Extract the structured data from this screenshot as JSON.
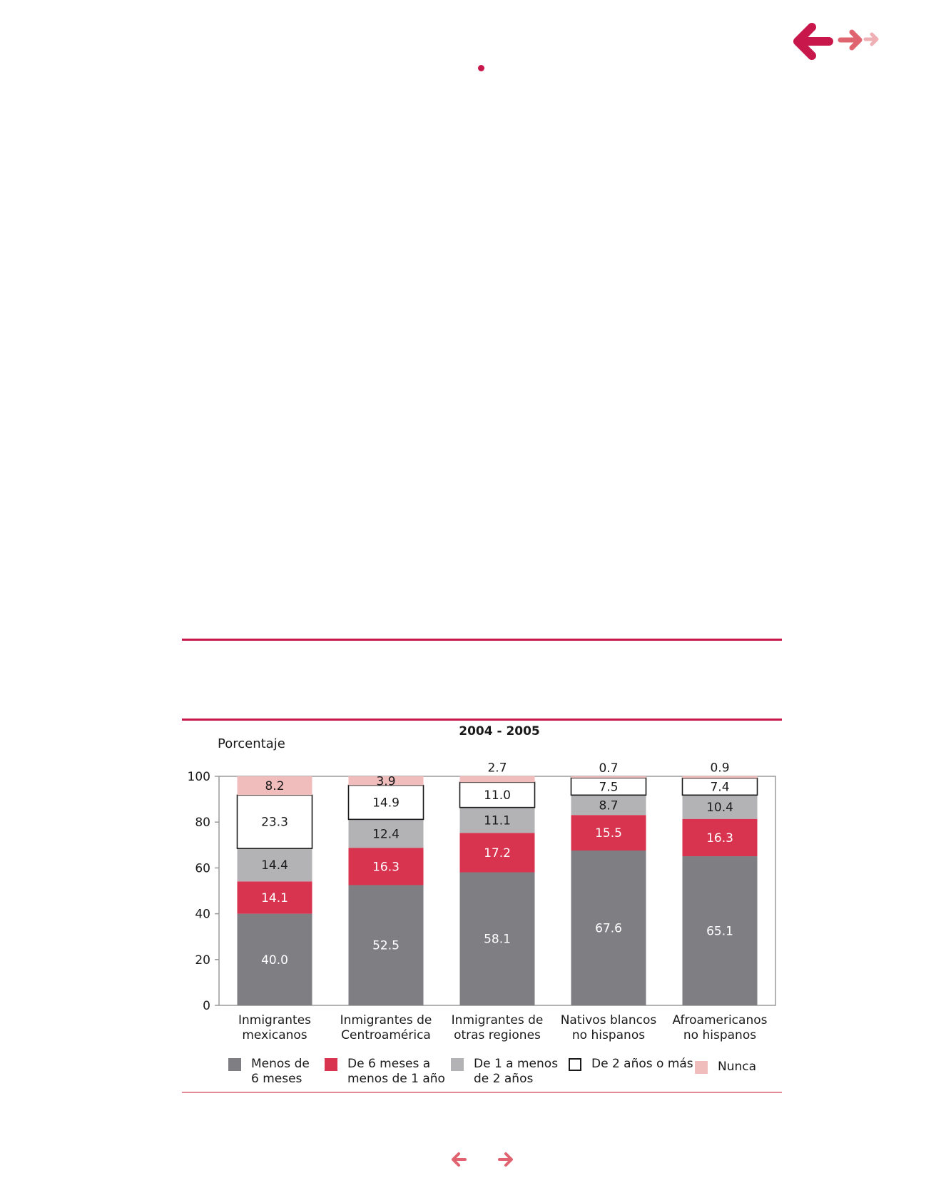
{
  "colors": {
    "accent": "#c8174a",
    "accent_light": "#e58a94",
    "menos_6_meses": "#7f7f83",
    "6_meses_1_ano": "#d8334f",
    "1_a_2_anos": "#b3b3b5",
    "2_anos_o_mas": "#ffffff",
    "nunca": "#f0bcbc"
  },
  "icons": {
    "back": "arrow-left-icon",
    "forward": "arrow-right-icon"
  },
  "chart_data": {
    "type": "bar",
    "stacked": true,
    "title": "2004 - 2005",
    "ylabel": "Porcentaje",
    "xlabel": "",
    "ylim": [
      0,
      100
    ],
    "yticks": [
      0,
      20,
      40,
      60,
      80,
      100
    ],
    "grid": false,
    "legend_position": "bottom",
    "categories": [
      [
        "Inmigrantes",
        "mexicanos"
      ],
      [
        "Inmigrantes de",
        "Centroamérica"
      ],
      [
        "Inmigrantes de",
        "otras regiones"
      ],
      [
        "Nativos blancos",
        "no hispanos"
      ],
      [
        "Afroamericanos",
        "no hispanos"
      ]
    ],
    "series": [
      {
        "name": [
          "Menos de",
          "6 meses"
        ],
        "color": "#7f7f83",
        "label_color": "#ffffff",
        "values": [
          40.0,
          52.5,
          58.1,
          67.6,
          65.1
        ]
      },
      {
        "name": [
          "De 6 meses a",
          "menos de 1 año"
        ],
        "color": "#d8334f",
        "label_color": "#ffffff",
        "values": [
          14.1,
          16.3,
          17.2,
          15.5,
          16.3
        ]
      },
      {
        "name": [
          "De 1 a menos",
          "de 2 años"
        ],
        "color": "#b3b3b5",
        "label_color": "#1a1a1a",
        "values": [
          14.4,
          12.4,
          11.1,
          8.7,
          10.4
        ]
      },
      {
        "name": [
          "De 2 años o más"
        ],
        "color": "#ffffff",
        "outlined": true,
        "label_color": "#1a1a1a",
        "values": [
          23.3,
          14.9,
          11.0,
          7.5,
          7.4
        ]
      },
      {
        "name": [
          "Nunca"
        ],
        "color": "#f0bcbc",
        "label_color": "#1a1a1a",
        "values": [
          8.2,
          3.9,
          2.7,
          0.7,
          0.9
        ]
      }
    ]
  }
}
